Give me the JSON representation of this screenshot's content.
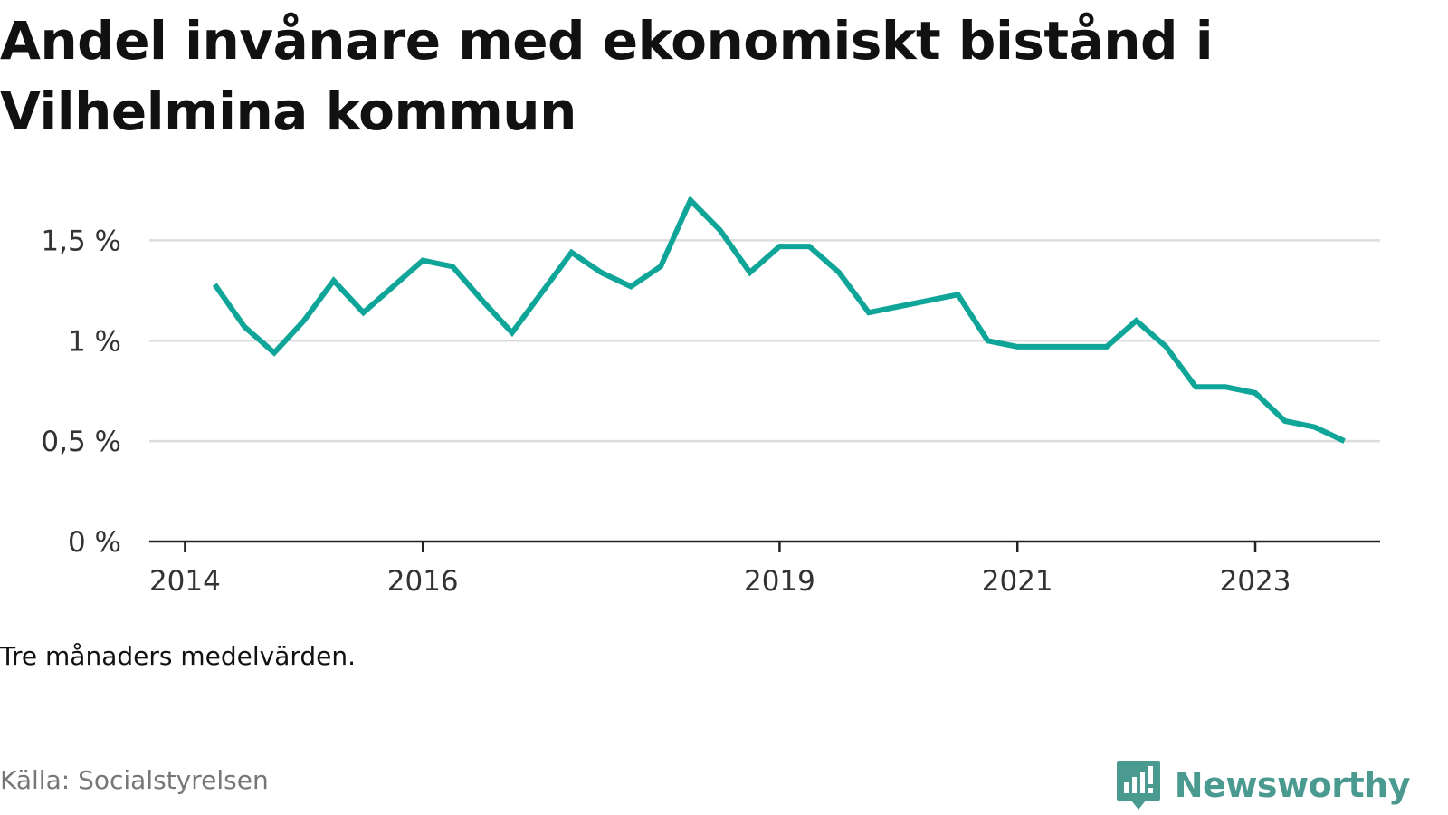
{
  "title": "Andel invånare med ekonomiskt bistånd i Vilhelmina kommun",
  "note": "Tre månaders medelvärden.",
  "source": "Källa: Socialstyrelsen",
  "brand": {
    "name": "Newsworthy",
    "icon": "newsworthy-logo-icon",
    "color": "#4a9a90"
  },
  "chart_data": {
    "type": "line",
    "title": "Andel invånare med ekonomiskt bistånd i Vilhelmina kommun",
    "xlabel": "",
    "ylabel": "",
    "ylim": [
      0,
      1.75
    ],
    "y_ticks": [
      0,
      0.5,
      1,
      1.5
    ],
    "y_tick_labels": [
      "0 %",
      "0,5 %",
      "1 %",
      "1,5 %"
    ],
    "x_ticks": [
      "2014",
      "2016",
      "2019",
      "2021",
      "2023"
    ],
    "grid": true,
    "legend": "none",
    "line_color": "#0fa598",
    "series": [
      {
        "name": "",
        "x": [
          "2014-04",
          "2014-07",
          "2014-10",
          "2015-01",
          "2015-04",
          "2015-07",
          "2015-10",
          "2016-01",
          "2016-04",
          "2016-07",
          "2016-10",
          "2017-01",
          "2017-04",
          "2017-07",
          "2017-10",
          "2018-01",
          "2018-04",
          "2018-07",
          "2018-10",
          "2019-01",
          "2019-04",
          "2019-07",
          "2019-10",
          "2020-01",
          "2020-04",
          "2020-07",
          "2020-10",
          "2021-01",
          "2021-04",
          "2021-07",
          "2021-10",
          "2022-01",
          "2022-04",
          "2022-07",
          "2022-10",
          "2023-01",
          "2023-04",
          "2023-07",
          "2023-10"
        ],
        "values": [
          1.28,
          1.07,
          0.94,
          1.1,
          1.3,
          1.14,
          1.27,
          1.4,
          1.37,
          1.2,
          1.04,
          1.24,
          1.44,
          1.34,
          1.27,
          1.37,
          1.7,
          1.55,
          1.34,
          1.47,
          1.47,
          1.34,
          1.14,
          1.17,
          1.2,
          1.23,
          1.0,
          0.97,
          0.97,
          0.97,
          0.97,
          1.1,
          0.97,
          0.77,
          0.77,
          0.74,
          0.6,
          0.57,
          0.5
        ]
      }
    ]
  }
}
